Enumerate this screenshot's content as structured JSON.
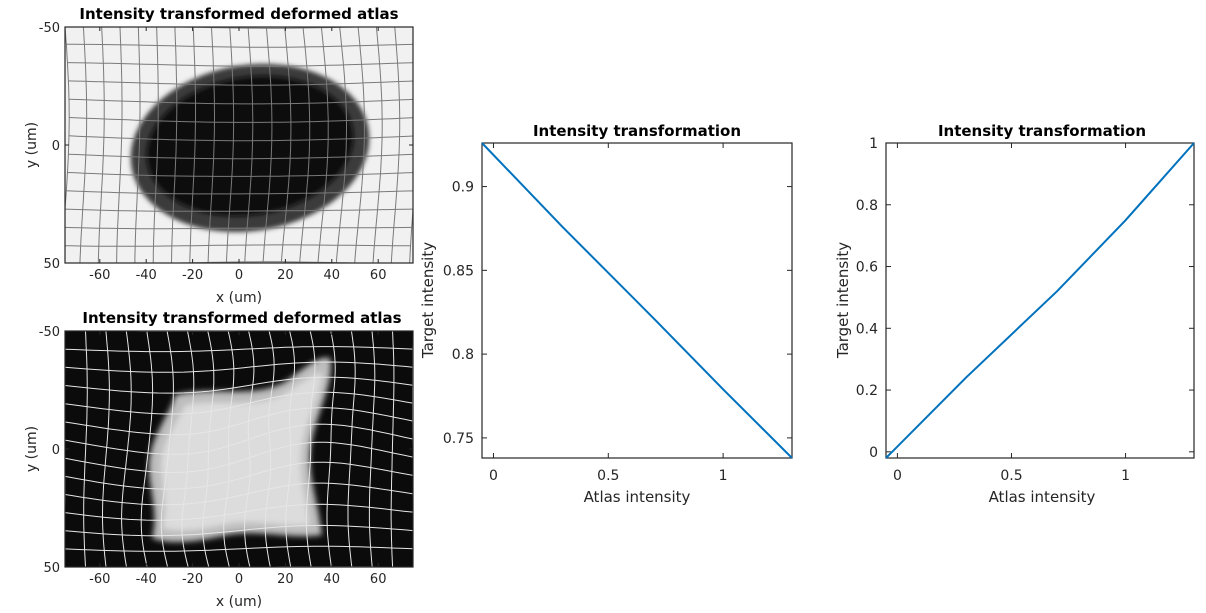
{
  "chart_data": [
    {
      "type": "image",
      "title": "Intensity transformed deformed atlas",
      "xlabel": "x (um)",
      "ylabel": "y (um)",
      "xlim": [
        -75,
        75
      ],
      "ylim": [
        -50,
        50
      ],
      "xticks": [
        -60,
        -40,
        -20,
        0,
        20,
        40,
        60
      ],
      "yticks": [
        -50,
        0,
        50
      ],
      "background": "light",
      "blob": "dark ellipse",
      "grid_lines": "gray"
    },
    {
      "type": "image",
      "title": "Intensity transformed deformed atlas",
      "xlabel": "x (um)",
      "ylabel": "y (um)",
      "xlim": [
        -75,
        75
      ],
      "ylim": [
        -50,
        50
      ],
      "xticks": [
        -60,
        -40,
        -20,
        0,
        20,
        40,
        60
      ],
      "yticks": [
        -50,
        0,
        50
      ],
      "background": "dark",
      "blob": "light deformed square",
      "grid_lines": "white"
    },
    {
      "type": "line",
      "title": "Intensity transformation",
      "xlabel": "Atlas intensity",
      "ylabel": "Target intensity",
      "xlim": [
        -0.05,
        1.3
      ],
      "ylim": [
        0.738,
        0.926
      ],
      "xticks": [
        0,
        0.5,
        1
      ],
      "yticks": [
        0.75,
        0.8,
        0.85,
        0.9
      ],
      "series": [
        {
          "color": "#0072BD",
          "x": [
            -0.05,
            0.3,
            0.7,
            1.0,
            1.3
          ],
          "y": [
            0.926,
            0.876,
            0.821,
            0.779,
            0.738
          ]
        }
      ]
    },
    {
      "type": "line",
      "title": "Intensity transformation",
      "xlabel": "Atlas intensity",
      "ylabel": "Target intensity",
      "xlim": [
        -0.05,
        1.3
      ],
      "ylim": [
        -0.02,
        1.0
      ],
      "xticks": [
        0,
        0.5,
        1
      ],
      "yticks": [
        0,
        0.2,
        0.4,
        0.6,
        0.8,
        1
      ],
      "series": [
        {
          "color": "#0072BD",
          "x": [
            -0.05,
            0.3,
            0.7,
            1.0,
            1.3
          ],
          "y": [
            -0.02,
            0.24,
            0.52,
            0.75,
            1.0
          ]
        }
      ]
    }
  ]
}
